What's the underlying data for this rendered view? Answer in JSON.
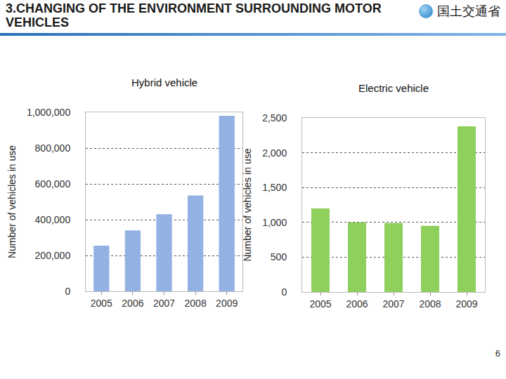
{
  "header": {
    "title": "3.CHANGING OF THE ENVIRONMENT SURROUNDING MOTOR VEHICLES",
    "logo": "国土交通省"
  },
  "page_number": 6,
  "chart_data": [
    {
      "type": "bar",
      "title": "Hybrid vehicle",
      "y_label": "Number of vehicles in use",
      "categories": [
        "2005",
        "2006",
        "2007",
        "2008",
        "2009"
      ],
      "values": [
        255000,
        340000,
        430000,
        535000,
        980000
      ],
      "color": "#93b1e3",
      "ylim": [
        0,
        1000000
      ],
      "yticks": [
        0,
        {
          "value": 200000,
          "label": "200,000"
        },
        {
          "value": 400000,
          "label": "400,000"
        },
        {
          "value": 600000,
          "label": "600,000"
        },
        {
          "value": 800000,
          "label": "800,000"
        },
        {
          "value": 1000000,
          "label": "1,000,000"
        }
      ],
      "grid": true
    },
    {
      "type": "bar",
      "title": "Electric vehicle",
      "y_label": "Number of vehicles in use",
      "categories": [
        "2005",
        "2006",
        "2007",
        "2008",
        "2009"
      ],
      "values": [
        1200,
        1000,
        990,
        950,
        2380
      ],
      "color": "#8fcf5c",
      "ylim": [
        0,
        2500
      ],
      "yticks": [
        0,
        500,
        {
          "value": 1000,
          "label": "1,000"
        },
        {
          "value": 1500,
          "label": "1,500"
        },
        {
          "value": 2000,
          "label": "2,000"
        },
        {
          "value": 2500,
          "label": "2,500"
        }
      ],
      "grid": true
    }
  ]
}
